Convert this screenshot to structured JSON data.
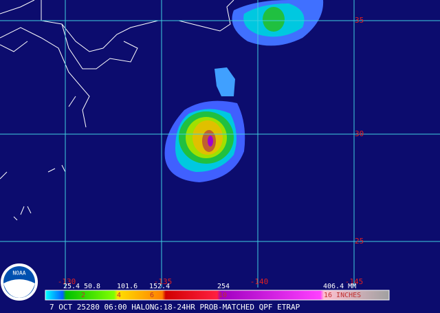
{
  "map": {
    "lat_labels": [
      "35",
      "30",
      "25"
    ],
    "lon_labels": [
      "-130",
      "-135",
      "-140",
      "-145"
    ],
    "scale_mm": [
      "25.4",
      "50.8",
      "101.6",
      "152.4",
      "254",
      "406.4 MM"
    ],
    "scale_in": [
      "2",
      "4",
      "6",
      "10",
      "16 INCHES"
    ],
    "logo": "NOAA",
    "caption": "7 OCT 25280 06:00 HALONG:18-24HR PROB-MATCHED QPF ETRAP"
  }
}
